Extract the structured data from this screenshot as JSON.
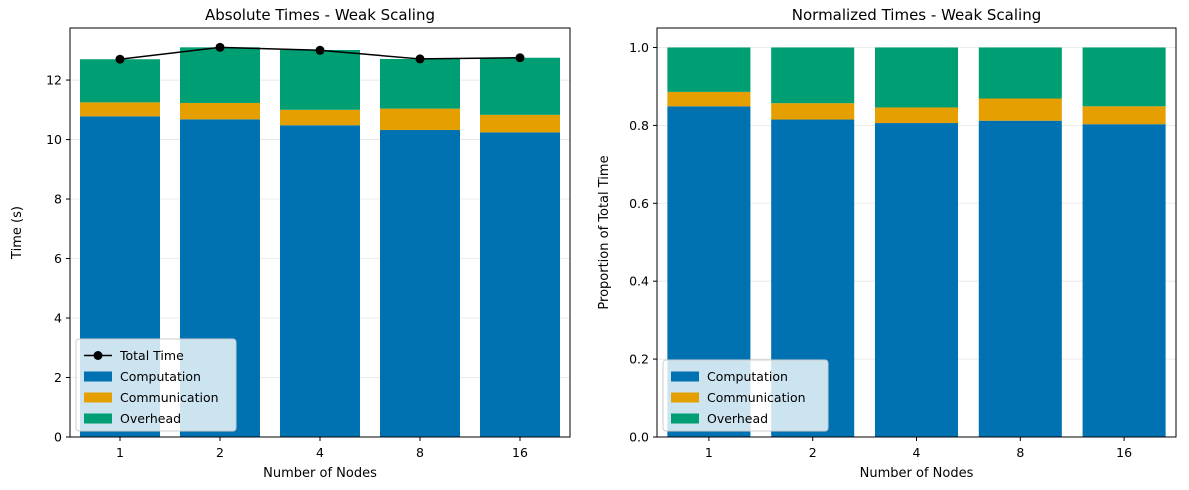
{
  "chart_data": [
    {
      "type": "bar",
      "stacked": true,
      "title": "Absolute Times - Weak Scaling",
      "xlabel": "Number of Nodes",
      "ylabel": "Time (s)",
      "categories": [
        "1",
        "2",
        "4",
        "8",
        "16"
      ],
      "ylim": [
        0,
        13.75
      ],
      "yticks": [
        "0",
        "2",
        "4",
        "6",
        "8",
        "10",
        "12"
      ],
      "grid": true,
      "legend_position": "lower-left",
      "series": [
        {
          "name": "Computation",
          "color": "#0072b2",
          "values": [
            10.78,
            10.68,
            10.48,
            10.32,
            10.24
          ]
        },
        {
          "name": "Communication",
          "color": "#e69f00",
          "values": [
            0.47,
            0.55,
            0.52,
            0.72,
            0.59
          ]
        },
        {
          "name": "Overhead",
          "color": "#009e73",
          "values": [
            1.45,
            1.87,
            2.01,
            1.67,
            1.92
          ]
        }
      ],
      "line_series": {
        "name": "Total Time",
        "color": "#000000",
        "values": [
          12.7,
          13.1,
          13.0,
          12.71,
          12.75
        ]
      }
    },
    {
      "type": "bar",
      "stacked": true,
      "title": "Normalized Times - Weak Scaling",
      "xlabel": "Number of Nodes",
      "ylabel": "Proportion of Total Time",
      "categories": [
        "1",
        "2",
        "4",
        "8",
        "16"
      ],
      "ylim": [
        0,
        1.05
      ],
      "yticks": [
        "0.0",
        "0.2",
        "0.4",
        "0.6",
        "0.8",
        "1.0"
      ],
      "grid": true,
      "legend_position": "lower-left",
      "series": [
        {
          "name": "Computation",
          "color": "#0072b2",
          "values": [
            0.849,
            0.815,
            0.806,
            0.812,
            0.803
          ]
        },
        {
          "name": "Communication",
          "color": "#e69f00",
          "values": [
            0.037,
            0.042,
            0.04,
            0.057,
            0.046
          ]
        },
        {
          "name": "Overhead",
          "color": "#009e73",
          "values": [
            0.114,
            0.143,
            0.154,
            0.131,
            0.151
          ]
        }
      ]
    }
  ]
}
